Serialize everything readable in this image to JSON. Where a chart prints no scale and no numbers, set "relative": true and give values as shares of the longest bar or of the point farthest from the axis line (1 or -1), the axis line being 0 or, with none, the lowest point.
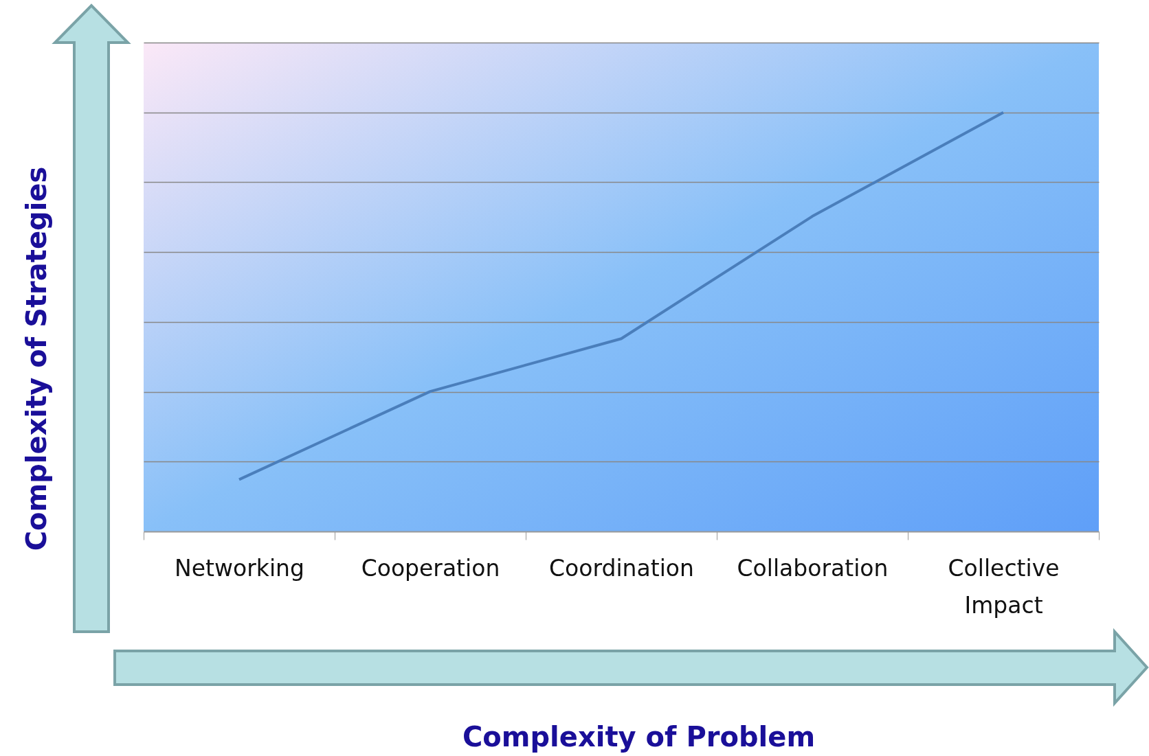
{
  "chart_data": {
    "type": "line",
    "xlabel": "Complexity of Problem",
    "ylabel": "Complexity of  Strategies",
    "categories": [
      "Networking",
      "Cooperation",
      "Coordination",
      "Collaboration",
      "Collective Impact"
    ],
    "series": [
      {
        "color": "#4a7ebb",
        "values": [
          0.124,
          0.334,
          0.46,
          0.752,
          1
        ]
      }
    ],
    "relative": true,
    "grid": "y",
    "tick_labels": "x",
    "marker": "none",
    "line_style": "solid"
  }
}
